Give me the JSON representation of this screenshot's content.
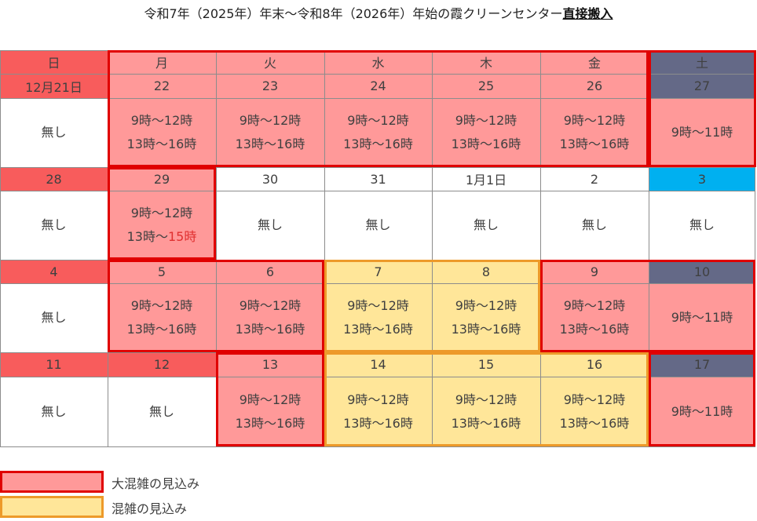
{
  "title": {
    "main": "令和7年（2025年）年末～令和8年（2026年）年始の霞クリーンセンター",
    "emphasis": "直接搬入"
  },
  "weekdays": [
    "日",
    "月",
    "火",
    "水",
    "木",
    "金",
    "土"
  ],
  "weeks": [
    {
      "dates": [
        "12月21日",
        "22",
        "23",
        "24",
        "25",
        "26",
        "27"
      ],
      "hours": [
        [
          "無し"
        ],
        [
          "9時～12時",
          "13時～16時"
        ],
        [
          "9時～12時",
          "13時～16時"
        ],
        [
          "9時～12時",
          "13時～16時"
        ],
        [
          "9時～12時",
          "13時～16時"
        ],
        [
          "9時～12時",
          "13時～16時"
        ],
        [
          "9時～11時"
        ]
      ]
    },
    {
      "dates": [
        "28",
        "29",
        "30",
        "31",
        "1月1日",
        "2",
        "3"
      ],
      "hours": [
        [
          "無し"
        ],
        [
          "9時～12時",
          "13時～15時"
        ],
        [
          "無し"
        ],
        [
          "無し"
        ],
        [
          "無し"
        ],
        [
          "無し"
        ],
        [
          "無し"
        ]
      ]
    },
    {
      "dates": [
        "4",
        "5",
        "6",
        "7",
        "8",
        "9",
        "10"
      ],
      "hours": [
        [
          "無し"
        ],
        [
          "9時～12時",
          "13時～16時"
        ],
        [
          "9時～12時",
          "13時～16時"
        ],
        [
          "9時～12時",
          "13時～16時"
        ],
        [
          "9時～12時",
          "13時～16時"
        ],
        [
          "9時～12時",
          "13時～16時"
        ],
        [
          "9時～11時"
        ]
      ]
    },
    {
      "dates": [
        "11",
        "12",
        "13",
        "14",
        "15",
        "16",
        "17"
      ],
      "hours": [
        [
          "無し"
        ],
        [
          "無し"
        ],
        [
          "9時～12時",
          "13時～16時"
        ],
        [
          "9時～12時",
          "13時～16時"
        ],
        [
          "9時～12時",
          "13時～16時"
        ],
        [
          "9時～12時",
          "13時～16時"
        ],
        [
          "9時～11時"
        ]
      ]
    }
  ],
  "legend": [
    {
      "label": "大混雑の見込み",
      "fill": "#ff9999",
      "border": "#e00000"
    },
    {
      "label": "混雑の見込み",
      "fill": "#ffe699",
      "border": "#ed9a2a"
    }
  ],
  "colors": {
    "heavy_fill": "#ff9999",
    "heavy_border": "#e00000",
    "moderate_fill": "#ffe699",
    "moderate_border": "#ed9a2a",
    "sunday_header": "#f85c5c",
    "saturday_header": "#646987",
    "holiday_header": "#00b0f0"
  }
}
